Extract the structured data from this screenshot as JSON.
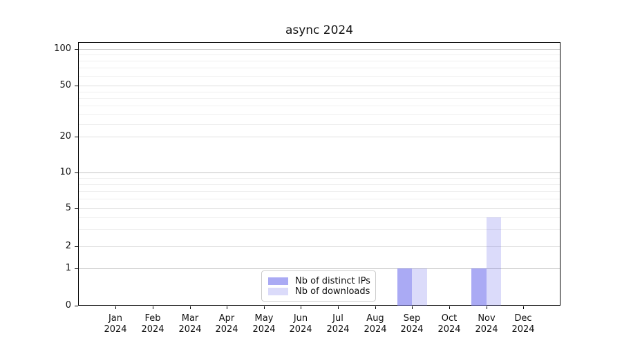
{
  "chart_data": {
    "type": "bar",
    "title": "async 2024",
    "months": [
      "Jan",
      "Feb",
      "Mar",
      "Apr",
      "May",
      "Jun",
      "Jul",
      "Aug",
      "Sep",
      "Oct",
      "Nov",
      "Dec"
    ],
    "year_label": "2024",
    "series": [
      {
        "name": "Nb of distinct IPs",
        "color": "rgba(100,100,235,0.55)",
        "values": [
          0,
          0,
          0,
          0,
          0,
          0,
          0,
          0,
          1,
          0,
          1,
          0
        ]
      },
      {
        "name": "Nb of downloads",
        "color": "rgba(100,100,235,0.23)",
        "values": [
          0,
          0,
          0,
          0,
          0,
          0,
          0,
          0,
          1,
          0,
          4,
          0
        ]
      }
    ],
    "yticks": [
      0,
      1,
      2,
      5,
      10,
      20,
      50,
      100
    ],
    "ytick_labels": [
      "0",
      "1",
      "2",
      "5",
      "10",
      "20",
      "50",
      "100"
    ],
    "minor_yticks": [
      3,
      4,
      6,
      7,
      8,
      9,
      25,
      30,
      35,
      40,
      45,
      60,
      70,
      80,
      90
    ],
    "yscale": "symlog-like",
    "ylim": [
      0,
      110
    ],
    "grid": true,
    "legend_position": "lower center",
    "colors": {
      "axis": "#000000",
      "grid_power10": "#c2c2c2",
      "grid_major": "#dedede",
      "grid_minor": "#efefef",
      "text": "#111111",
      "legend_border": "#cccccc"
    }
  }
}
